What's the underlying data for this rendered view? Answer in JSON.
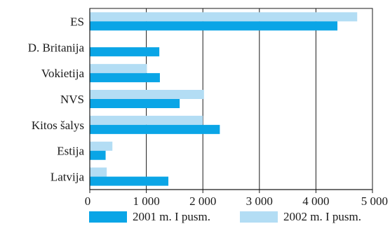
{
  "chart_data": {
    "type": "bar",
    "orientation": "horizontal",
    "categories": [
      "ES",
      "D. Britanija",
      "Vokietija",
      "NVS",
      "Kitos šalys",
      "Estija",
      "Latvija"
    ],
    "series": [
      {
        "name": "2001 m. I pusm.",
        "values": [
          4380,
          1230,
          1240,
          1590,
          2300,
          280,
          1390
        ],
        "color": "#0aa5e6"
      },
      {
        "name": "2002 m. I pusm.",
        "values": [
          4730,
          0,
          1010,
          2020,
          2000,
          400,
          300
        ],
        "color": "#b3ddf4"
      }
    ],
    "x_ticks": [
      0,
      1000,
      2000,
      3000,
      4000,
      5000
    ],
    "x_tick_labels": [
      "0",
      "1 000",
      "2 000",
      "3 000",
      "4 000",
      "5 000"
    ],
    "xlim": [
      0,
      5000
    ],
    "grid": "vertical",
    "legend_position": "bottom",
    "title": "",
    "xlabel": "",
    "ylabel": ""
  }
}
